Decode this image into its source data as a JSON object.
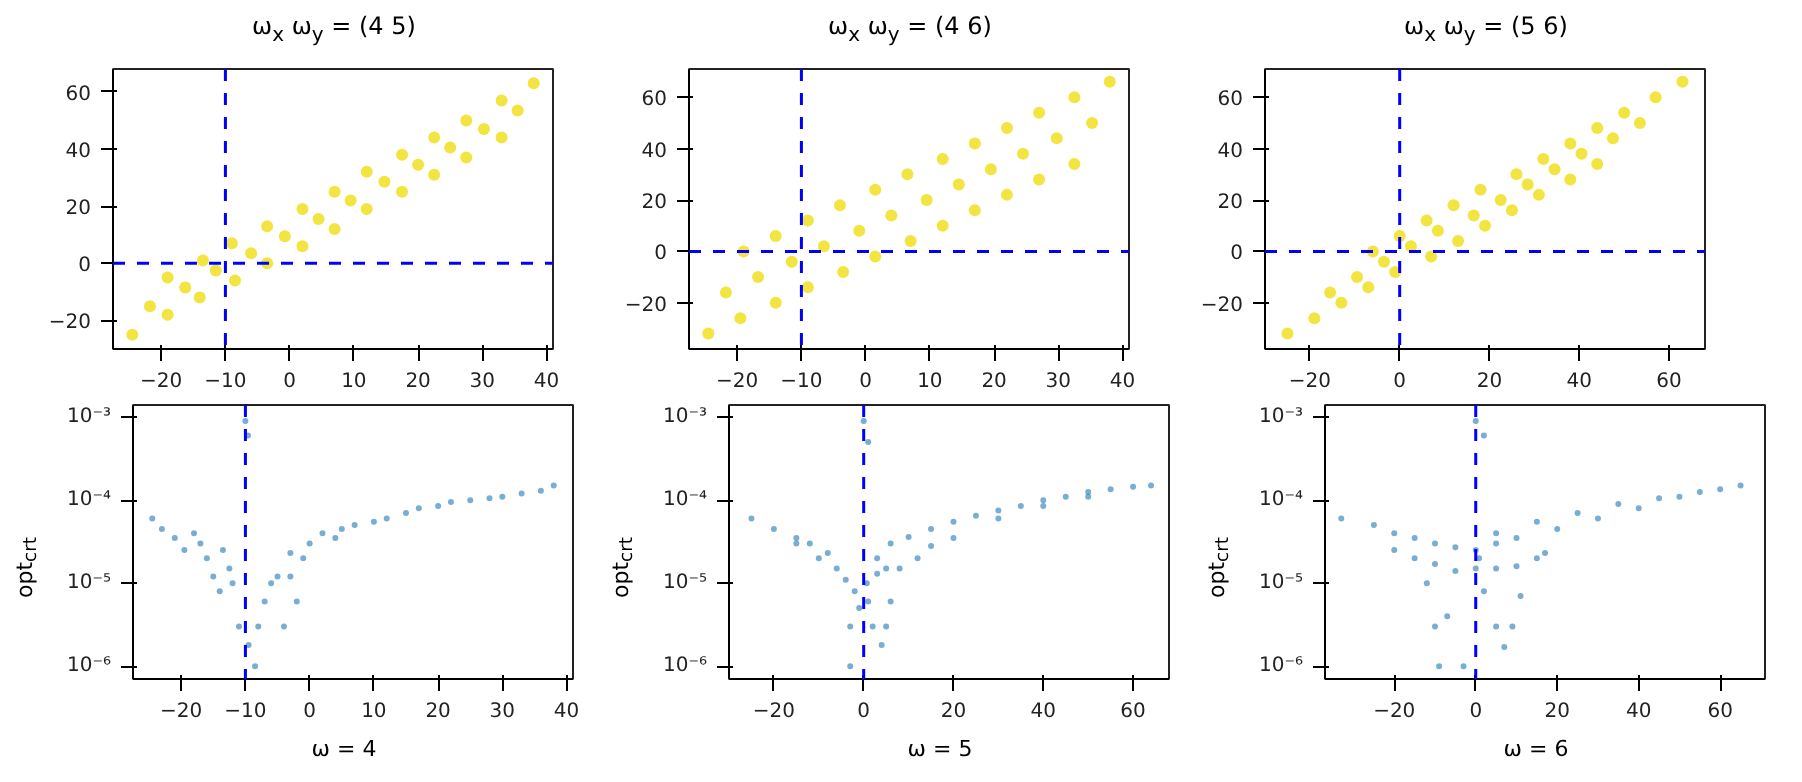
{
  "chart_data": [
    {
      "type": "scatter",
      "title": "ω$_{x}$ ω$_{y}$ = (4 5)",
      "marker": "circle",
      "series": [
        {
          "color": "#f0df20",
          "x": [
            -24.5,
            -21.75,
            -19,
            -19,
            -16.25,
            -13.5,
            -14,
            -11.5,
            -9,
            -8.5,
            -6,
            -3.5,
            -3.5,
            -0.75,
            2,
            2,
            4.5,
            7,
            7,
            9.5,
            12,
            12,
            14.75,
            17.5,
            17.5,
            20,
            22.5,
            22.5,
            25,
            27.5,
            27.5,
            30.25,
            33,
            33,
            35.5,
            38
          ],
          "values": [
            -25,
            -15,
            -5,
            -18,
            -8.5,
            1,
            -12,
            -2.5,
            7,
            -6,
            3.5,
            13,
            0,
            9.5,
            19,
            6,
            15.5,
            25,
            12,
            22,
            32,
            19,
            28.5,
            38,
            25,
            34.5,
            44,
            31,
            40.5,
            50,
            37,
            47,
            57,
            44,
            53.5,
            63
          ]
        }
      ],
      "xlim": [
        -27.5,
        41
      ],
      "ylim": [
        -30,
        68
      ],
      "xticks": [
        -20,
        -10,
        0,
        10,
        20,
        30,
        40
      ],
      "yticks": [
        -20,
        0,
        20,
        40,
        60
      ],
      "ref_lines": [
        {
          "axis": "x",
          "value": -10,
          "color": "#0000ff",
          "line_style": "dashed"
        },
        {
          "axis": "y",
          "value": 0,
          "color": "#0000ff",
          "line_style": "dashed"
        }
      ]
    },
    {
      "type": "scatter",
      "title": "ω$_{x}$ ω$_{y}$ = (4 6)",
      "marker": "circle",
      "series": [
        {
          "color": "#f0df20",
          "x": [
            -24.5,
            -21.75,
            -19,
            -19.5,
            -16.75,
            -14,
            -14,
            -11.5,
            -9,
            -9,
            -6.5,
            -4,
            -3.5,
            -1,
            1.5,
            1.5,
            4,
            6.5,
            7,
            9.5,
            12,
            12,
            14.5,
            17,
            17,
            19.5,
            22,
            22,
            24.5,
            27,
            27,
            29.75,
            32.5,
            32.5,
            35.25,
            38
          ],
          "values": [
            -32,
            -16,
            0,
            -26,
            -10,
            6,
            -20,
            -4,
            12,
            -14,
            2,
            18,
            -8,
            8,
            24,
            -2,
            14,
            30,
            4,
            20,
            36,
            10,
            26,
            42,
            16,
            32,
            48,
            22,
            38,
            54,
            28,
            44,
            60,
            34,
            50,
            66
          ]
        }
      ],
      "xlim": [
        -27.5,
        41
      ],
      "ylim": [
        -38,
        71
      ],
      "xticks": [
        -20,
        -10,
        0,
        10,
        20,
        30,
        40
      ],
      "yticks": [
        -20,
        0,
        20,
        40,
        60
      ],
      "ref_lines": [
        {
          "axis": "x",
          "value": -10,
          "color": "#0000ff",
          "line_style": "dashed"
        },
        {
          "axis": "y",
          "value": 0,
          "color": "#0000ff",
          "line_style": "dashed"
        }
      ]
    },
    {
      "type": "scatter",
      "title": "ω$_{x}$ ω$_{y}$ = (5 6)",
      "marker": "circle",
      "series": [
        {
          "color": "#f0df20",
          "x": [
            -25,
            -15.5,
            -6,
            -19,
            -9.5,
            0,
            -13,
            -3.5,
            6,
            -7,
            2.5,
            12,
            -1,
            8.5,
            18,
            7,
            16.5,
            26,
            13,
            22.5,
            32,
            19,
            28.5,
            38,
            25,
            34.5,
            44,
            31,
            40.5,
            50,
            38,
            47.5,
            57,
            44,
            53.5,
            63
          ],
          "values": [
            -32,
            -16,
            0,
            -26,
            -10,
            6,
            -20,
            -4,
            12,
            -14,
            2,
            18,
            -8,
            8,
            24,
            -2,
            14,
            30,
            4,
            20,
            36,
            10,
            26,
            42,
            16,
            32,
            48,
            22,
            38,
            54,
            28,
            44,
            60,
            34,
            50,
            66
          ]
        }
      ],
      "xlim": [
        -30,
        68
      ],
      "ylim": [
        -38,
        71
      ],
      "xticks": [
        -20,
        0,
        20,
        40,
        60
      ],
      "yticks": [
        -20,
        0,
        20,
        40,
        60
      ],
      "ref_lines": [
        {
          "axis": "x",
          "value": 0,
          "color": "#0000ff",
          "line_style": "dashed"
        },
        {
          "axis": "y",
          "value": 0,
          "color": "#0000ff",
          "line_style": "dashed"
        }
      ]
    },
    {
      "type": "scatter",
      "xlabel": "ω = 4",
      "ylabel": "opt$_{crt}$",
      "marker": "circle",
      "log": "y",
      "series": [
        {
          "color": "#1f77b4",
          "x": [
            -24.5,
            -23,
            -21,
            -19.5,
            -18,
            -17,
            -16,
            -15,
            -14,
            -13.5,
            -12.5,
            -12,
            -10,
            -9.6,
            -11,
            -9.5,
            -8.5,
            -8,
            -7,
            -6,
            -5,
            -4,
            -3,
            -3,
            -2,
            -1,
            0,
            2,
            4,
            5,
            7,
            10,
            12,
            15,
            17,
            20,
            22,
            25,
            28,
            30,
            33,
            36,
            38
          ],
          "values": [
            6e-05,
            4.5e-05,
            3.5e-05,
            2.5e-05,
            4e-05,
            3e-05,
            2e-05,
            1.2e-05,
            8e-06,
            2.5e-05,
            1.5e-05,
            1e-05,
            0.0009,
            0.0006,
            3e-06,
            1.8e-06,
            1e-06,
            3e-06,
            6e-06,
            1e-05,
            1.2e-05,
            3e-06,
            1.2e-05,
            2.3e-05,
            6e-06,
            2e-05,
            3e-05,
            4e-05,
            3.5e-05,
            4.5e-05,
            5e-05,
            5.5e-05,
            6e-05,
            7e-05,
            8e-05,
            8.5e-05,
            9.5e-05,
            0.0001,
            0.000105,
            0.00011,
            0.00012,
            0.00013,
            0.00015
          ]
        }
      ],
      "xlim": [
        -27.5,
        41
      ],
      "ylim": [
        7e-07,
        0.0014
      ],
      "xticks": [
        -20,
        -10,
        0,
        10,
        20,
        30,
        40
      ],
      "yticks": [
        {
          "value": 1e-06,
          "label": "10⁻⁶"
        },
        {
          "value": 1e-05,
          "label": "10⁻⁵"
        },
        {
          "value": 0.0001,
          "label": "10⁻⁴"
        },
        {
          "value": 0.001,
          "label": "10⁻³"
        }
      ],
      "ref_lines": [
        {
          "axis": "x",
          "value": -10,
          "color": "#0000ff",
          "line_style": "dashed"
        }
      ]
    },
    {
      "type": "scatter",
      "xlabel": "ω = 5",
      "ylabel": "opt$_{crt}$",
      "marker": "circle",
      "log": "y",
      "series": [
        {
          "color": "#1f77b4",
          "x": [
            -25,
            -20,
            -15,
            -12,
            -8,
            -15,
            -10,
            -6,
            -4,
            -2,
            -3,
            -3,
            -1,
            0,
            1,
            0.7,
            1,
            2,
            4,
            5,
            6,
            3,
            5,
            8,
            12,
            15,
            20,
            3,
            6,
            10,
            15,
            20,
            25,
            30,
            35,
            40,
            45,
            50,
            55,
            60,
            64,
            30,
            40,
            50
          ],
          "values": [
            6e-05,
            4.5e-05,
            3.5e-05,
            3e-05,
            2.3e-05,
            3e-05,
            2e-05,
            1.5e-05,
            1.1e-05,
            8e-06,
            3e-06,
            1e-06,
            5e-06,
            0.0009,
            0.0005,
            1e-05,
            6e-06,
            3e-06,
            1.8e-06,
            3e-06,
            6e-06,
            1.3e-05,
            1.5e-05,
            1.5e-05,
            2e-05,
            2.8e-05,
            3.5e-05,
            2e-05,
            3e-05,
            3.6e-05,
            4.5e-05,
            5.5e-05,
            6.5e-05,
            7.5e-05,
            8.5e-05,
            0.0001,
            0.00011,
            0.000125,
            0.000135,
            0.000145,
            0.00015,
            6e-05,
            8.5e-05,
            0.00011
          ]
        }
      ],
      "xlim": [
        -30,
        68
      ],
      "ylim": [
        7e-07,
        0.0014
      ],
      "xticks": [
        -20,
        0,
        20,
        40,
        60
      ],
      "yticks": [
        {
          "value": 1e-06,
          "label": "10⁻⁶"
        },
        {
          "value": 1e-05,
          "label": "10⁻⁵"
        },
        {
          "value": 0.0001,
          "label": "10⁻⁴"
        },
        {
          "value": 0.001,
          "label": "10⁻³"
        }
      ],
      "ref_lines": [
        {
          "axis": "x",
          "value": 0,
          "color": "#0000ff",
          "line_style": "dashed"
        }
      ]
    },
    {
      "type": "scatter",
      "xlabel": "ω = 6",
      "ylabel": "opt$_{crt}$",
      "marker": "circle",
      "log": "y",
      "series": [
        {
          "color": "#1f77b4",
          "x": [
            -33,
            -25,
            -20,
            -15,
            -10,
            -5,
            -20,
            -15,
            -10,
            -5,
            -12,
            -10,
            -9,
            -7,
            -3,
            0,
            2,
            0,
            0,
            2,
            5,
            7,
            9,
            11,
            0.8,
            5,
            10,
            15,
            17,
            5,
            10,
            20,
            30,
            40,
            50,
            60,
            5,
            15,
            25,
            35,
            45,
            55,
            65
          ],
          "values": [
            6e-05,
            5e-05,
            4e-05,
            3.5e-05,
            3e-05,
            2.7e-05,
            2.5e-05,
            2e-05,
            1.7e-05,
            1.4e-05,
            1e-05,
            3e-06,
            1e-06,
            4e-06,
            1e-06,
            0.0009,
            0.0006,
            2.5e-05,
            1.5e-05,
            8e-06,
            3e-06,
            1.7e-06,
            3e-06,
            7e-06,
            2e-05,
            1.5e-05,
            1.6e-05,
            2e-05,
            2.3e-05,
            3e-05,
            3.5e-05,
            4.5e-05,
            6e-05,
            8e-05,
            0.00011,
            0.000135,
            4e-05,
            5.5e-05,
            7e-05,
            9e-05,
            0.000105,
            0.000125,
            0.00015
          ]
        }
      ],
      "xlim": [
        -37,
        71
      ],
      "ylim": [
        7e-07,
        0.0014
      ],
      "xticks": [
        -20,
        0,
        20,
        40,
        60
      ],
      "yticks": [
        {
          "value": 1e-06,
          "label": "10⁻⁶"
        },
        {
          "value": 1e-05,
          "label": "10⁻⁵"
        },
        {
          "value": 0.0001,
          "label": "10⁻⁴"
        },
        {
          "value": 0.001,
          "label": "10⁻³"
        }
      ],
      "ref_lines": [
        {
          "axis": "x",
          "value": 0,
          "color": "#0000ff",
          "line_style": "dashed"
        }
      ]
    }
  ]
}
